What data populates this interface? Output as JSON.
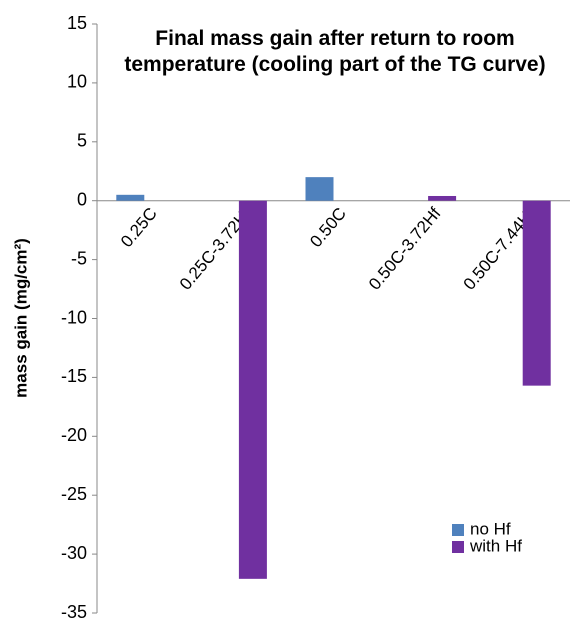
{
  "chart_data": {
    "type": "bar",
    "title": "Final mass gain after return to room temperature (cooling part of the TG curve)",
    "ylabel": "mass gain (mg/cm²)",
    "categories": [
      "0.25C",
      "0.25C-3.72Hf",
      "0.50C",
      "0.50C-3.72Hf",
      "0.50C-7.44Hf"
    ],
    "series": [
      {
        "name": "no Hf",
        "color": "#4f81bd",
        "values": [
          0.5,
          null,
          2.0,
          null,
          null
        ]
      },
      {
        "name": "with Hf",
        "color": "#7030a0",
        "values": [
          null,
          -32.1,
          null,
          0.4,
          -15.7
        ]
      }
    ],
    "ylim": [
      -35,
      15
    ],
    "yticks": [
      -35,
      -30,
      -25,
      -20,
      -15,
      -10,
      -5,
      0,
      5,
      10,
      15
    ],
    "legend": "lower right"
  }
}
